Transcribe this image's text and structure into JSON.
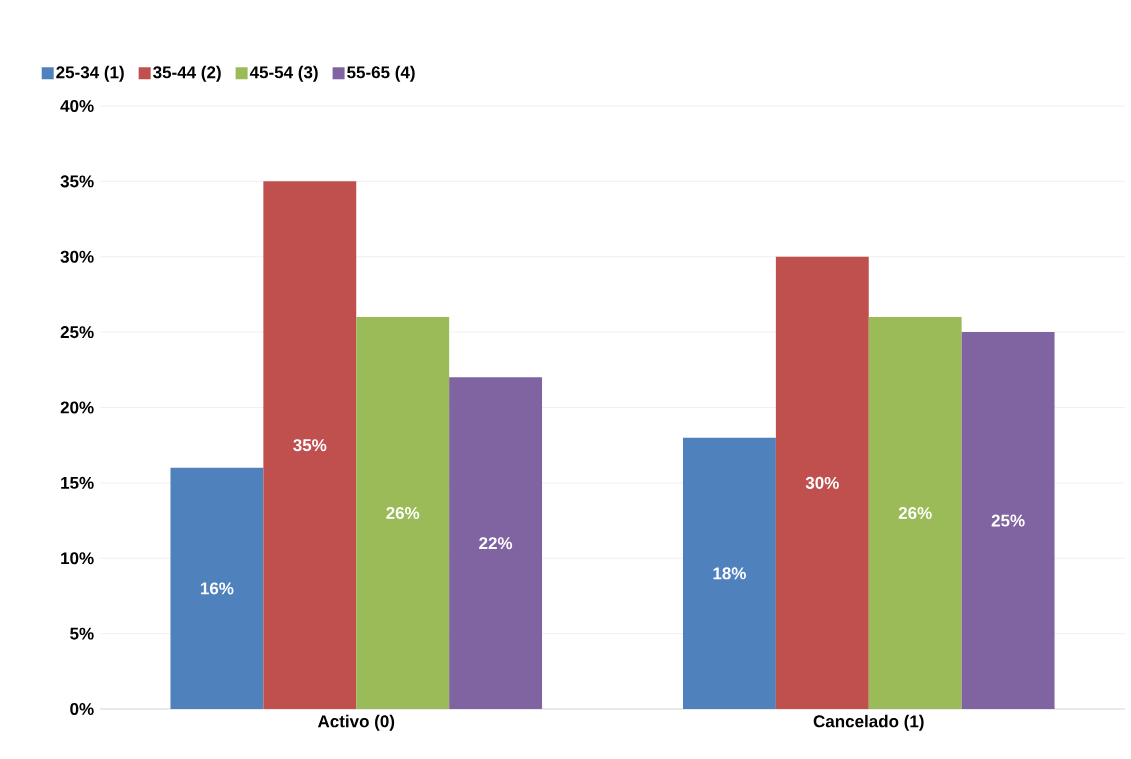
{
  "chart_data": {
    "type": "bar",
    "categories": [
      "Activo (0)",
      "Cancelado (1)"
    ],
    "series": [
      {
        "name": "25-34 (1)",
        "color": "#4f81bd",
        "values": [
          16,
          18
        ],
        "value_labels": [
          "16%",
          "18%"
        ]
      },
      {
        "name": "35-44 (2)",
        "color": "#c0504d",
        "values": [
          35,
          30
        ],
        "value_labels": [
          "35%",
          "30%"
        ]
      },
      {
        "name": "45-54 (3)",
        "color": "#9bbb59",
        "values": [
          26,
          26
        ],
        "value_labels": [
          "26%",
          "26%"
        ]
      },
      {
        "name": "55-65 (4)",
        "color": "#8064a2",
        "values": [
          22,
          25
        ],
        "value_labels": [
          "22%",
          "25%"
        ]
      }
    ],
    "ylim": [
      0,
      40
    ],
    "yticks": [
      {
        "value": 0,
        "label": "0%"
      },
      {
        "value": 5,
        "label": "5%"
      },
      {
        "value": 10,
        "label": "10%"
      },
      {
        "value": 15,
        "label": "15%"
      },
      {
        "value": 20,
        "label": "20%"
      },
      {
        "value": 25,
        "label": "25%"
      },
      {
        "value": 30,
        "label": "30%"
      },
      {
        "value": 35,
        "label": "35%"
      },
      {
        "value": 40,
        "label": "40%"
      }
    ],
    "grid": "y",
    "legend": "top left"
  }
}
